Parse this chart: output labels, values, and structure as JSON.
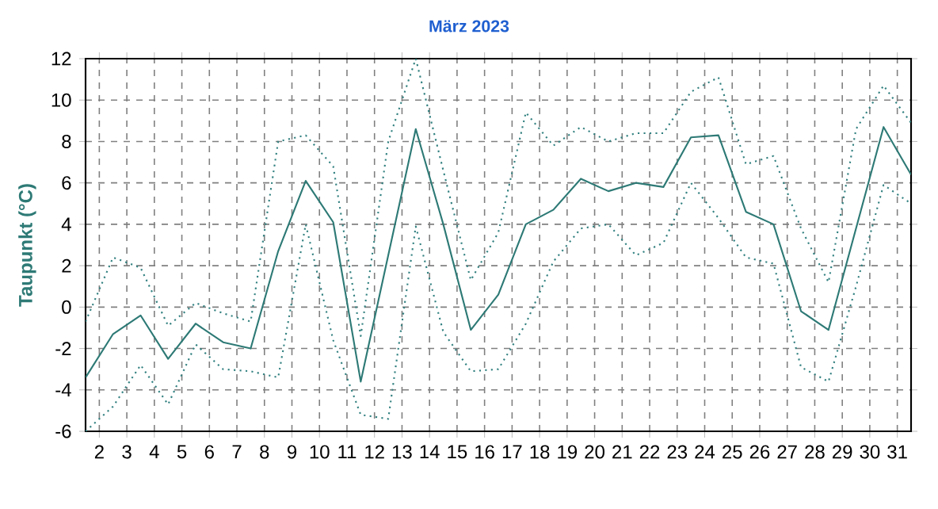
{
  "chart_data": {
    "type": "line",
    "title": "März 2023",
    "ylabel": "Taupunkt  (°C)",
    "x": [
      1.5,
      2.5,
      3.5,
      4.5,
      5.5,
      6.5,
      7.5,
      8.5,
      9.5,
      10.5,
      11.5,
      12.5,
      13.5,
      14.5,
      15.5,
      16.5,
      17.5,
      18.5,
      19.5,
      20.5,
      21.5,
      22.5,
      23.5,
      24.5,
      25.5,
      26.5,
      27.5,
      28.5,
      29.5,
      30.5,
      31.5
    ],
    "series": [
      {
        "color": "#338080",
        "line_style": "dotted",
        "values": [
          -0.7,
          2.4,
          1.9,
          -0.9,
          0.2,
          -0.3,
          -0.7,
          8.0,
          8.3,
          6.8,
          -1.4,
          8.0,
          12.0,
          6.6,
          1.3,
          3.6,
          9.4,
          7.8,
          8.7,
          8.0,
          8.4,
          8.4,
          10.4,
          11.1,
          6.9,
          7.3,
          3.8,
          1.2,
          8.6,
          10.7,
          8.9
        ]
      },
      {
        "color": "#2e7a76",
        "line_style": "solid",
        "values": [
          -3.4,
          -1.3,
          -0.4,
          -2.5,
          -0.8,
          -1.7,
          -2.0,
          2.7,
          6.1,
          4.1,
          -3.6,
          2.5,
          8.6,
          4.0,
          -1.1,
          0.6,
          4.0,
          4.7,
          6.2,
          5.6,
          6.0,
          5.8,
          8.2,
          8.3,
          4.6,
          4.0,
          -0.2,
          -1.1,
          3.8,
          8.7,
          6.4
        ]
      },
      {
        "color": "#338080",
        "line_style": "dotted",
        "values": [
          -6.0,
          -4.8,
          -2.8,
          -4.7,
          -1.8,
          -3.0,
          -3.1,
          -3.4,
          4.0,
          -1.6,
          -5.2,
          -5.4,
          3.9,
          -1.2,
          -3.1,
          -3.0,
          -0.8,
          2.2,
          3.8,
          4.0,
          2.5,
          3.1,
          6.0,
          4.3,
          2.4,
          2.1,
          -2.9,
          -3.6,
          1.0,
          5.9,
          5.0
        ]
      }
    ],
    "xlim": [
      1.5,
      31.5
    ],
    "xticks": [
      2,
      3,
      4,
      5,
      6,
      7,
      8,
      9,
      10,
      11,
      12,
      13,
      14,
      15,
      16,
      17,
      18,
      19,
      20,
      21,
      22,
      23,
      24,
      25,
      26,
      27,
      28,
      29,
      30,
      31
    ],
    "ylim": [
      -6,
      12
    ],
    "yticks": [
      -6,
      -4,
      -2,
      0,
      2,
      4,
      6,
      8,
      10,
      12
    ],
    "grid": true,
    "marker": "none"
  }
}
